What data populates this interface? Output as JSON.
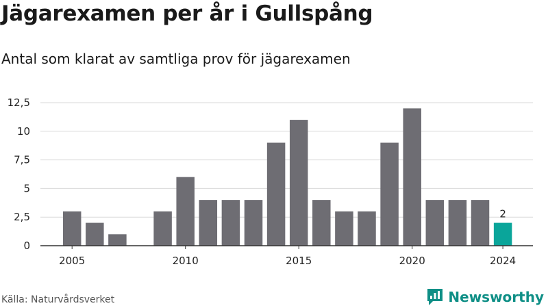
{
  "header": {
    "title": "Jägarexamen per år i Gullspång",
    "subtitle": "Antal som klarat av samtliga prov för jägarexamen"
  },
  "footer": {
    "source": "Källa: Naturvårdsverket",
    "brand": "Newsworthy",
    "brand_icon": "newsworthy-logo-icon"
  },
  "colors": {
    "bar": "#6e6d73",
    "highlight": "#0aa59a",
    "grid": "#d9d9d9",
    "brand": "#0f8f86"
  },
  "chart_data": {
    "type": "bar",
    "title": "Jägarexamen per år i Gullspång",
    "subtitle": "Antal som klarat av samtliga prov för jägarexamen",
    "xlabel": "",
    "ylabel": "",
    "x": [
      2005,
      2006,
      2007,
      2008,
      2009,
      2010,
      2011,
      2012,
      2013,
      2014,
      2015,
      2016,
      2017,
      2018,
      2019,
      2020,
      2021,
      2022,
      2023,
      2024
    ],
    "values": [
      3,
      2,
      1,
      0,
      3,
      6,
      4,
      4,
      4,
      9,
      11,
      4,
      3,
      3,
      9,
      12,
      4,
      4,
      4,
      2
    ],
    "highlight_x": 2024,
    "highlight_label": "2",
    "ylim": [
      0,
      12.5
    ],
    "yticks": [
      0,
      2.5,
      5,
      7.5,
      10,
      12.5
    ],
    "ytick_labels": [
      "0",
      "2,5",
      "5",
      "7,5",
      "10",
      "12,5"
    ],
    "xticks": [
      2005,
      2010,
      2015,
      2020,
      2024
    ],
    "xtick_labels": [
      "2005",
      "2010",
      "2015",
      "2020",
      "2024"
    ],
    "grid": true,
    "legend": "none"
  }
}
